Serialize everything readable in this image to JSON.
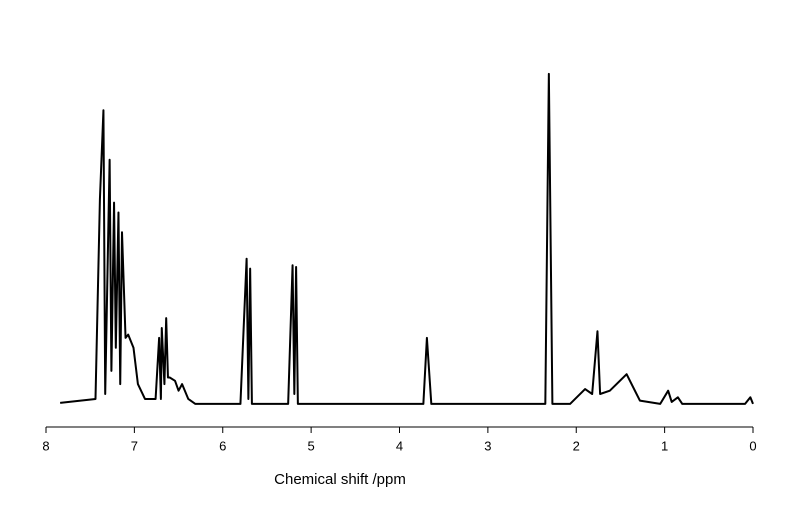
{
  "chart_data": {
    "type": "line",
    "x_label": "Chemical shift /ppm",
    "color": "#000000",
    "xlim": [
      8,
      0
    ],
    "xticks": [
      8,
      7,
      6,
      5,
      4,
      3,
      2,
      1,
      0
    ],
    "ylim": [
      -7,
      105
    ],
    "x": [
      7.84,
      7.44,
      7.39,
      7.35,
      7.33,
      7.28,
      7.26,
      7.23,
      7.21,
      7.18,
      7.16,
      7.14,
      7.1,
      7.07,
      7.01,
      6.96,
      6.88,
      6.76,
      6.72,
      6.7,
      6.69,
      6.66,
      6.64,
      6.62,
      6.6,
      6.54,
      6.5,
      6.46,
      6.39,
      6.31,
      5.8,
      5.73,
      5.71,
      5.69,
      5.67,
      5.26,
      5.21,
      5.19,
      5.17,
      5.15,
      3.73,
      3.69,
      3.64,
      2.35,
      2.31,
      2.27,
      2.07,
      1.9,
      1.82,
      1.76,
      1.73,
      1.62,
      1.43,
      1.28,
      1.05,
      0.96,
      0.92,
      0.85,
      0.8,
      0.09,
      0.03,
      0.0
    ],
    "values": [
      0.3,
      1.5,
      62,
      89,
      3,
      74,
      10,
      61,
      17,
      58,
      6,
      52,
      20,
      21,
      17,
      6,
      1.5,
      1.5,
      20,
      1.5,
      23,
      6,
      26,
      8,
      8,
      7,
      4,
      6,
      1.5,
      0,
      0,
      44,
      1.5,
      41,
      0,
      0,
      42,
      3,
      41.5,
      0,
      0,
      20,
      0,
      0,
      100,
      0,
      0,
      4.5,
      3,
      22,
      3,
      4,
      9,
      1,
      0,
      4,
      0.6,
      2,
      0,
      0,
      2,
      0
    ]
  }
}
